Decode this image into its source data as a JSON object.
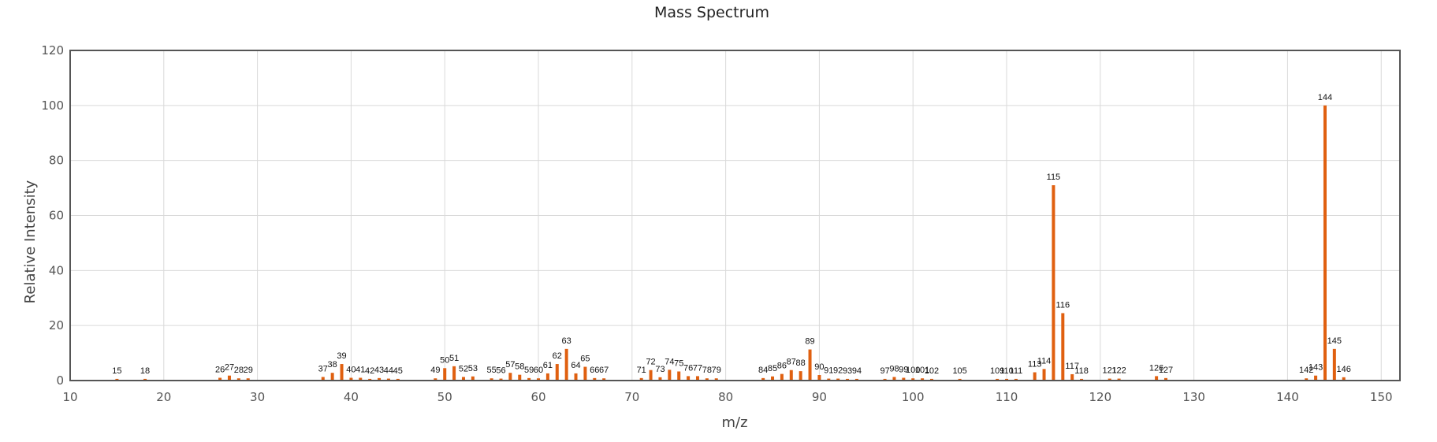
{
  "chart_data": {
    "type": "bar",
    "title": "Mass Spectrum",
    "xlabel": "m/z",
    "ylabel": "Relative Intensity",
    "xlim": [
      10,
      152
    ],
    "ylim": [
      0,
      120
    ],
    "xticks": [
      10,
      20,
      30,
      40,
      50,
      60,
      70,
      80,
      90,
      100,
      110,
      120,
      130,
      140,
      150
    ],
    "yticks": [
      0,
      20,
      40,
      60,
      80,
      100,
      120
    ],
    "grid": true,
    "bar_color": "#e06010",
    "peaks": [
      {
        "mz": 15,
        "intensity": 0.6
      },
      {
        "mz": 18,
        "intensity": 0.6
      },
      {
        "mz": 26,
        "intensity": 1.0
      },
      {
        "mz": 27,
        "intensity": 1.8
      },
      {
        "mz": 28,
        "intensity": 0.8
      },
      {
        "mz": 29,
        "intensity": 0.8
      },
      {
        "mz": 37,
        "intensity": 1.3
      },
      {
        "mz": 38,
        "intensity": 2.8
      },
      {
        "mz": 39,
        "intensity": 6.0
      },
      {
        "mz": 40,
        "intensity": 1.0
      },
      {
        "mz": 41,
        "intensity": 1.0
      },
      {
        "mz": 42,
        "intensity": 0.6
      },
      {
        "mz": 43,
        "intensity": 0.9
      },
      {
        "mz": 44,
        "intensity": 0.7
      },
      {
        "mz": 45,
        "intensity": 0.6
      },
      {
        "mz": 49,
        "intensity": 0.8
      },
      {
        "mz": 50,
        "intensity": 4.5
      },
      {
        "mz": 51,
        "intensity": 5.2
      },
      {
        "mz": 52,
        "intensity": 1.3
      },
      {
        "mz": 53,
        "intensity": 1.5
      },
      {
        "mz": 55,
        "intensity": 0.8
      },
      {
        "mz": 56,
        "intensity": 0.7
      },
      {
        "mz": 57,
        "intensity": 2.8
      },
      {
        "mz": 58,
        "intensity": 2.1
      },
      {
        "mz": 59,
        "intensity": 0.9
      },
      {
        "mz": 60,
        "intensity": 0.8
      },
      {
        "mz": 61,
        "intensity": 2.6
      },
      {
        "mz": 62,
        "intensity": 6.0
      },
      {
        "mz": 63,
        "intensity": 11.5
      },
      {
        "mz": 64,
        "intensity": 2.6
      },
      {
        "mz": 65,
        "intensity": 5.0
      },
      {
        "mz": 66,
        "intensity": 0.9
      },
      {
        "mz": 67,
        "intensity": 0.8
      },
      {
        "mz": 71,
        "intensity": 0.9
      },
      {
        "mz": 72,
        "intensity": 3.8
      },
      {
        "mz": 73,
        "intensity": 1.2
      },
      {
        "mz": 74,
        "intensity": 3.9
      },
      {
        "mz": 75,
        "intensity": 3.3
      },
      {
        "mz": 76,
        "intensity": 1.6
      },
      {
        "mz": 77,
        "intensity": 1.6
      },
      {
        "mz": 78,
        "intensity": 0.8
      },
      {
        "mz": 79,
        "intensity": 0.8
      },
      {
        "mz": 84,
        "intensity": 0.9
      },
      {
        "mz": 85,
        "intensity": 1.5
      },
      {
        "mz": 86,
        "intensity": 2.4
      },
      {
        "mz": 87,
        "intensity": 3.8
      },
      {
        "mz": 88,
        "intensity": 3.4
      },
      {
        "mz": 89,
        "intensity": 11.3
      },
      {
        "mz": 90,
        "intensity": 2.0
      },
      {
        "mz": 91,
        "intensity": 0.7
      },
      {
        "mz": 92,
        "intensity": 0.7
      },
      {
        "mz": 93,
        "intensity": 0.6
      },
      {
        "mz": 94,
        "intensity": 0.6
      },
      {
        "mz": 97,
        "intensity": 0.6
      },
      {
        "mz": 98,
        "intensity": 1.3
      },
      {
        "mz": 99,
        "intensity": 1.0
      },
      {
        "mz": 100,
        "intensity": 0.8
      },
      {
        "mz": 101,
        "intensity": 0.8
      },
      {
        "mz": 102,
        "intensity": 0.6
      },
      {
        "mz": 105,
        "intensity": 0.6
      },
      {
        "mz": 109,
        "intensity": 0.6
      },
      {
        "mz": 110,
        "intensity": 0.6
      },
      {
        "mz": 111,
        "intensity": 0.6
      },
      {
        "mz": 113,
        "intensity": 3.0
      },
      {
        "mz": 114,
        "intensity": 4.2
      },
      {
        "mz": 115,
        "intensity": 71.0
      },
      {
        "mz": 116,
        "intensity": 24.5
      },
      {
        "mz": 117,
        "intensity": 2.3
      },
      {
        "mz": 118,
        "intensity": 0.6
      },
      {
        "mz": 121,
        "intensity": 0.7
      },
      {
        "mz": 122,
        "intensity": 0.7
      },
      {
        "mz": 126,
        "intensity": 1.6
      },
      {
        "mz": 127,
        "intensity": 0.9
      },
      {
        "mz": 142,
        "intensity": 0.8
      },
      {
        "mz": 143,
        "intensity": 1.8
      },
      {
        "mz": 144,
        "intensity": 100.0
      },
      {
        "mz": 145,
        "intensity": 11.5
      },
      {
        "mz": 146,
        "intensity": 1.2
      }
    ]
  }
}
